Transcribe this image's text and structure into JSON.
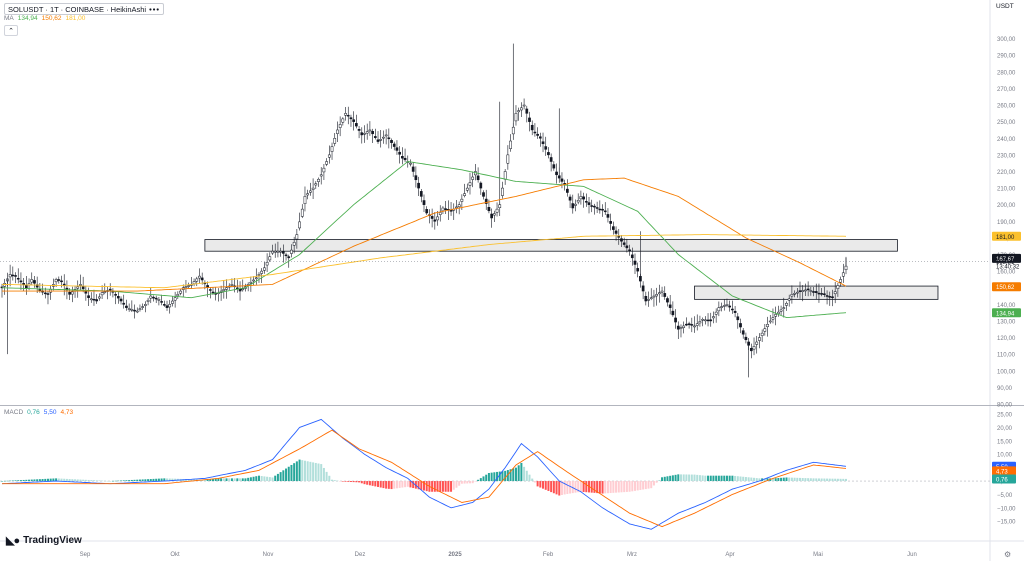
{
  "header": {
    "symbol": "SOLUSDT · 1T · COINBASE · HeikinAshi",
    "menu": "•••",
    "currency": "USDT"
  },
  "ma_legend": {
    "label": "MA",
    "values": [
      "134,94",
      "150,62",
      "181,00"
    ],
    "colors": [
      "#4caf50",
      "#f57c00",
      "#fbc02d"
    ]
  },
  "macd_legend": {
    "label": "MACD",
    "values": [
      "0,76",
      "5,50",
      "4,73"
    ],
    "colors": [
      "#26a69a",
      "#2962ff",
      "#ff6d00"
    ]
  },
  "branding": "TradingView",
  "chart_data": [
    {
      "type": "candlestick",
      "style": "HeikinAshi",
      "ylim": [
        80,
        310
      ],
      "yticks": [
        80,
        90,
        100,
        110,
        120,
        130,
        140,
        150,
        160,
        170,
        180,
        190,
        200,
        210,
        220,
        230,
        240,
        250,
        260,
        270,
        280,
        290,
        300
      ],
      "ytick_labels": [
        "80,00",
        "90,00",
        "100,00",
        "110,00",
        "120,00",
        "130,00",
        "140,00",
        "150,00",
        "160,00",
        "170,00",
        "180,00",
        "190,00",
        "200,00",
        "210,00",
        "220,00",
        "230,00",
        "240,00",
        "250,00",
        "260,00",
        "270,00",
        "280,00",
        "290,00",
        "300,00"
      ],
      "x_labels": [
        "Sep",
        "Okt",
        "Nov",
        "Dez",
        "2025",
        "Feb",
        "Mrz",
        "Apr",
        "Mai",
        "Jun"
      ],
      "close_keypoints": [
        [
          0,
          150
        ],
        [
          3,
          158
        ],
        [
          5,
          157
        ],
        [
          9,
          150
        ],
        [
          11,
          155
        ],
        [
          14,
          148
        ],
        [
          17,
          146
        ],
        [
          20,
          155
        ],
        [
          22,
          154
        ],
        [
          25,
          146
        ],
        [
          29,
          152
        ],
        [
          32,
          144
        ],
        [
          35,
          142
        ],
        [
          37,
          147
        ],
        [
          40,
          149
        ],
        [
          44,
          142
        ],
        [
          46,
          138
        ],
        [
          50,
          136
        ],
        [
          53,
          140
        ],
        [
          55,
          145
        ],
        [
          58,
          143
        ],
        [
          61,
          138
        ],
        [
          64,
          144
        ],
        [
          67,
          150
        ],
        [
          70,
          152
        ],
        [
          73,
          157
        ],
        [
          76,
          150
        ],
        [
          79,
          146
        ],
        [
          82,
          149
        ],
        [
          85,
          152
        ],
        [
          88,
          148
        ],
        [
          91,
          152
        ],
        [
          94,
          156
        ],
        [
          97,
          162
        ],
        [
          100,
          172
        ],
        [
          103,
          172
        ],
        [
          106,
          168
        ],
        [
          109,
          182
        ],
        [
          112,
          205
        ],
        [
          115,
          210
        ],
        [
          118,
          218
        ],
        [
          121,
          230
        ],
        [
          124,
          245
        ],
        [
          127,
          255
        ],
        [
          130,
          250
        ],
        [
          133,
          242
        ],
        [
          136,
          245
        ],
        [
          139,
          238
        ],
        [
          142,
          242
        ],
        [
          145,
          235
        ],
        [
          148,
          228
        ],
        [
          151,
          225
        ],
        [
          154,
          210
        ],
        [
          157,
          195
        ],
        [
          160,
          190
        ],
        [
          163,
          198
        ],
        [
          166,
          196
        ],
        [
          169,
          200
        ],
        [
          172,
          210
        ],
        [
          175,
          220
        ],
        [
          178,
          205
        ],
        [
          181,
          192
        ],
        [
          184,
          200
        ],
        [
          187,
          230
        ],
        [
          190,
          255
        ],
        [
          193,
          260
        ],
        [
          196,
          245
        ],
        [
          199,
          240
        ],
        [
          202,
          230
        ],
        [
          205,
          218
        ],
        [
          208,
          212
        ],
        [
          211,
          198
        ],
        [
          214,
          205
        ],
        [
          217,
          200
        ],
        [
          220,
          198
        ],
        [
          223,
          196
        ],
        [
          226,
          185
        ],
        [
          229,
          178
        ],
        [
          232,
          172
        ],
        [
          235,
          160
        ],
        [
          238,
          142
        ],
        [
          241,
          145
        ],
        [
          244,
          148
        ],
        [
          247,
          138
        ],
        [
          250,
          125
        ],
        [
          253,
          128
        ],
        [
          256,
          127
        ],
        [
          259,
          131
        ],
        [
          262,
          130
        ],
        [
          265,
          138
        ],
        [
          268,
          140
        ],
        [
          271,
          135
        ],
        [
          274,
          122
        ],
        [
          277,
          112
        ],
        [
          280,
          120
        ],
        [
          283,
          128
        ],
        [
          286,
          134
        ],
        [
          289,
          138
        ],
        [
          292,
          146
        ],
        [
          295,
          148
        ],
        [
          298,
          149
        ],
        [
          301,
          147
        ],
        [
          304,
          146
        ],
        [
          307,
          144
        ],
        [
          310,
          155
        ],
        [
          312,
          163
        ]
      ],
      "ma_series": [
        {
          "name": "MA",
          "color": "#4caf50",
          "last": 134.94,
          "keypoints": [
            [
              0,
              150
            ],
            [
              40,
              148
            ],
            [
              70,
              144
            ],
            [
              90,
              150
            ],
            [
              110,
              170
            ],
            [
              130,
              200
            ],
            [
              150,
              226
            ],
            [
              170,
              221
            ],
            [
              190,
              214
            ],
            [
              215,
              211
            ],
            [
              235,
              196
            ],
            [
              250,
              170
            ],
            [
              270,
              145
            ],
            [
              290,
              132
            ],
            [
              312,
              135
            ]
          ]
        },
        {
          "name": "MA",
          "color": "#f57c00",
          "last": 150.62,
          "keypoints": [
            [
              0,
              148
            ],
            [
              50,
              148
            ],
            [
              100,
              152
            ],
            [
              130,
              175
            ],
            [
              160,
              195
            ],
            [
              190,
              205
            ],
            [
              215,
              215
            ],
            [
              230,
              216
            ],
            [
              250,
              205
            ],
            [
              275,
              180
            ],
            [
              295,
              165
            ],
            [
              312,
              151
            ]
          ]
        },
        {
          "name": "MA",
          "color": "#fbc02d",
          "last": 181.0,
          "keypoints": [
            [
              0,
              152
            ],
            [
              60,
              150
            ],
            [
              100,
              158
            ],
            [
              140,
              168
            ],
            [
              180,
              176
            ],
            [
              215,
              181
            ],
            [
              260,
              182
            ],
            [
              312,
              181
            ]
          ]
        }
      ],
      "zones": [
        {
          "x": [
            75,
            331
          ],
          "y": [
            172,
            179
          ]
        },
        {
          "x": [
            256,
            346
          ],
          "y": [
            143,
            151
          ]
        }
      ],
      "price_labels": [
        {
          "value": "181,00",
          "color": "#fbc02d",
          "price": 181.0
        },
        {
          "value": "167,67",
          "color": "#131722",
          "price": 167.67
        },
        {
          "value": "165,81",
          "color": "#ffffff",
          "price": 165.81
        },
        {
          "value": "13:40:32",
          "color": "#ffffff",
          "price": 163.2
        },
        {
          "value": "150,62",
          "color": "#f57c00",
          "price": 150.62
        },
        {
          "value": "134,94",
          "color": "#4caf50",
          "price": 134.94
        }
      ]
    },
    {
      "type": "bar+line",
      "name": "MACD",
      "ylim": [
        -22,
        28
      ],
      "yticks": [
        -15,
        -10,
        -5,
        0,
        5,
        10,
        15,
        20,
        25
      ],
      "ytick_labels": [
        "−15,00",
        "−10,00",
        "−5,00",
        "0,00",
        "5,00",
        "10,00",
        "15,00",
        "20,00",
        "25,00"
      ],
      "macd_keypoints": [
        [
          0,
          -1
        ],
        [
          20,
          0
        ],
        [
          40,
          -1
        ],
        [
          60,
          0
        ],
        [
          75,
          1
        ],
        [
          90,
          4
        ],
        [
          100,
          8
        ],
        [
          110,
          20
        ],
        [
          118,
          23
        ],
        [
          126,
          16
        ],
        [
          134,
          10
        ],
        [
          142,
          5
        ],
        [
          150,
          1
        ],
        [
          158,
          -6
        ],
        [
          166,
          -10
        ],
        [
          174,
          -8
        ],
        [
          180,
          -3
        ],
        [
          186,
          5
        ],
        [
          192,
          14
        ],
        [
          198,
          9
        ],
        [
          206,
          0
        ],
        [
          214,
          -4
        ],
        [
          222,
          -10
        ],
        [
          232,
          -16
        ],
        [
          240,
          -18
        ],
        [
          250,
          -12
        ],
        [
          260,
          -8
        ],
        [
          270,
          -3
        ],
        [
          280,
          0
        ],
        [
          290,
          4
        ],
        [
          300,
          7
        ],
        [
          312,
          5.5
        ]
      ],
      "signal_keypoints": [
        [
          0,
          -1
        ],
        [
          30,
          -1
        ],
        [
          60,
          -1
        ],
        [
          80,
          1
        ],
        [
          95,
          4
        ],
        [
          110,
          12
        ],
        [
          122,
          19
        ],
        [
          132,
          12
        ],
        [
          144,
          7
        ],
        [
          158,
          -2
        ],
        [
          170,
          -8
        ],
        [
          180,
          -6
        ],
        [
          190,
          6
        ],
        [
          198,
          11
        ],
        [
          208,
          4
        ],
        [
          220,
          -4
        ],
        [
          232,
          -12
        ],
        [
          244,
          -17
        ],
        [
          256,
          -12
        ],
        [
          270,
          -5
        ],
        [
          285,
          1
        ],
        [
          300,
          6
        ],
        [
          312,
          4.7
        ]
      ],
      "price_labels": [
        {
          "value": "5,50",
          "color": "#2962ff",
          "y": 5.5
        },
        {
          "value": "4,73",
          "color": "#ff6d00",
          "y": 3.8
        },
        {
          "value": "0,76",
          "color": "#26a69a",
          "y": 0.76
        }
      ]
    }
  ]
}
